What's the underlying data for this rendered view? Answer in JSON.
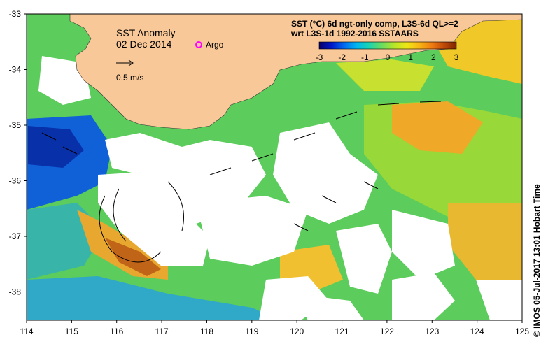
{
  "map": {
    "title": "SST Anomaly",
    "date": "02 Dec 2014",
    "argo_label": "Argo",
    "scale_label": "0.5 m/s",
    "product_line1": "SST (°C) 6d ngt-only comp, L3S-6d QL>=2",
    "product_line2": "wrt L3S-1d 1992-2016 SSTAARS",
    "credit": "© IMOS 05-Jul-2017 13:01 Hobart Time"
  },
  "colorbar": {
    "ticks": [
      "-3",
      "-2",
      "-1",
      "0",
      "1",
      "2",
      "3"
    ],
    "colors": [
      "#08006a",
      "#0018c8",
      "#0068f0",
      "#00b4f0",
      "#18d4b4",
      "#64dc64",
      "#b8e628",
      "#f0e614",
      "#f8b414",
      "#f07c10",
      "#c04808",
      "#7a2400"
    ]
  },
  "axes": {
    "lon_ticks": [
      "114",
      "115",
      "116",
      "117",
      "118",
      "119",
      "120",
      "121",
      "122",
      "123",
      "124",
      "125"
    ],
    "lat_ticks": [
      "-33",
      "-34",
      "-35",
      "-36",
      "-37",
      "-38"
    ]
  },
  "colors": {
    "land": "#f8c898",
    "no_data": "#ffffff",
    "argo_marker": "#ff00ff"
  }
}
